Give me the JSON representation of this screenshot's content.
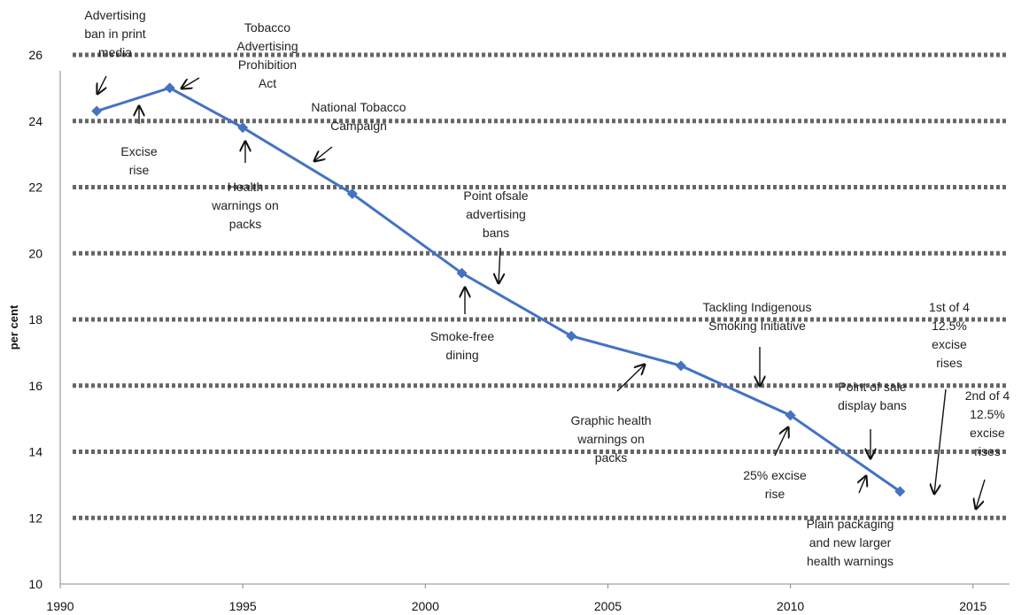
{
  "chart_data": {
    "type": "line",
    "ylabel": "per cent",
    "xlim": [
      1990,
      2016
    ],
    "ylim": [
      10,
      26
    ],
    "x_ticks": [
      "1990",
      "1995",
      "2000",
      "2005",
      "2010",
      "2015"
    ],
    "y_ticks": [
      "10",
      "12",
      "14",
      "16",
      "18",
      "20",
      "22",
      "24",
      "26"
    ],
    "grid": "horizontal-dashed",
    "line_color": "#4472C4",
    "series": [
      {
        "x": [
          1991,
          1993,
          1995,
          1998,
          2001,
          2004,
          2007,
          2010,
          2013
        ],
        "values": [
          24.3,
          25.0,
          23.8,
          21.8,
          19.4,
          17.5,
          16.6,
          15.1,
          12.8
        ]
      }
    ],
    "annotations": [
      {
        "id": "advertising-ban-print",
        "lines": [
          "Advertising",
          "ban in print",
          "media"
        ]
      },
      {
        "id": "tobacco-advertising-prohibition",
        "lines": [
          "Tobacco",
          "Advertising",
          "Prohibition",
          "Act"
        ]
      },
      {
        "id": "excise-rise",
        "lines": [
          "Excise",
          "rise"
        ]
      },
      {
        "id": "national-tobacco-campaign",
        "lines": [
          "National Tobacco",
          "Campaign"
        ]
      },
      {
        "id": "health-warnings",
        "lines": [
          "Health",
          "warnings on",
          "packs"
        ]
      },
      {
        "id": "point-of-sale-advertising",
        "lines": [
          "Point ofsale",
          "advertising",
          "bans"
        ]
      },
      {
        "id": "smoke-free-dining",
        "lines": [
          "Smoke-free",
          "dining"
        ]
      },
      {
        "id": "tackling-indigenous",
        "lines": [
          "Tackling Indigenous",
          "Smoking Initiative"
        ]
      },
      {
        "id": "graphic-health-warnings",
        "lines": [
          "Graphic health",
          "warnings on",
          "packs"
        ]
      },
      {
        "id": "point-of-sale-display",
        "lines": [
          "Point of sale",
          "display bans"
        ]
      },
      {
        "id": "excise-25",
        "lines": [
          "25% excise",
          "rise"
        ]
      },
      {
        "id": "plain-packaging",
        "lines": [
          "Plain packaging",
          "and new larger",
          "health warnings"
        ]
      },
      {
        "id": "first-excise-rise",
        "lines": [
          "1st of 4",
          "12.5%",
          "excise",
          "rises"
        ]
      },
      {
        "id": "second-excise-rise",
        "lines": [
          "2nd of 4",
          "12.5%",
          "excise",
          "rises"
        ]
      }
    ]
  }
}
